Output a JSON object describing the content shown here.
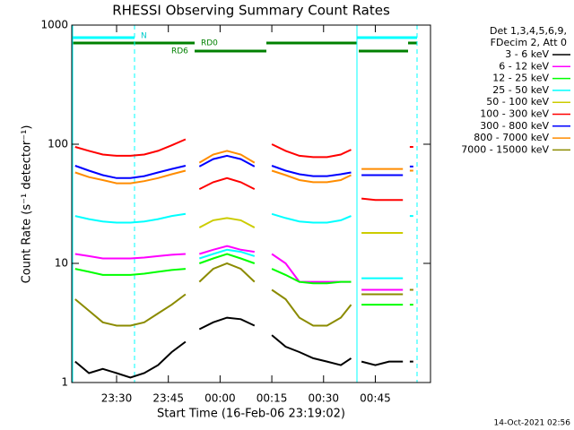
{
  "chart_data": {
    "type": "line",
    "title": "RHESSI Observing Summary Count Rates",
    "x_label": "Start Time (16-Feb-06 23:19:02)",
    "y_label": "Count Rate (s⁻¹ detector⁻¹)",
    "timestamp": "14-Oct-2021 02:56",
    "legend_header": [
      "Det 1,3,4,5,6,9,",
      "FDecim 2, Att 0"
    ],
    "annotations": [
      "N",
      "RD0",
      "RD6"
    ],
    "log_scale": true,
    "xlim": [
      "23:17",
      "01:01"
    ],
    "xticks": [
      "23:30",
      "23:45",
      "00:00",
      "00:15",
      "00:30",
      "00:45"
    ],
    "ylim": [
      1,
      1000
    ],
    "yticks": [
      1,
      10,
      100,
      1000
    ],
    "x": [
      "23:18",
      "23:22",
      "23:26",
      "23:30",
      "23:34",
      "23:38",
      "23:42",
      "23:46",
      "23:50",
      "23:52",
      "23:54",
      "23:58",
      "00:02",
      "00:06",
      "00:10",
      "00:13",
      "00:15",
      "00:19",
      "00:23",
      "00:27",
      "00:31",
      "00:35",
      "00:38",
      "00:39",
      "00:41",
      "00:45",
      "00:49",
      "00:53",
      "00:54",
      "00:55",
      "00:56"
    ],
    "series": [
      {
        "name": "3 - 6 keV",
        "color": "#000000",
        "values": [
          1.5,
          1.2,
          1.3,
          1.2,
          1.1,
          1.2,
          1.4,
          1.8,
          2.2,
          null,
          2.8,
          3.2,
          3.5,
          3.4,
          3,
          null,
          2.5,
          2,
          1.8,
          1.6,
          1.5,
          1.4,
          1.6,
          null,
          1.5,
          1.4,
          1.5,
          1.5,
          null,
          1.5,
          1.5
        ]
      },
      {
        "name": "6 - 12 keV",
        "color": "#ff00ff",
        "values": [
          12,
          11.5,
          11,
          11,
          11,
          11.2,
          11.5,
          11.8,
          12,
          null,
          12,
          13,
          14,
          13,
          12.5,
          null,
          12,
          10,
          7,
          7,
          7,
          7,
          7,
          null,
          6,
          6,
          6,
          6,
          null,
          6,
          6
        ]
      },
      {
        "name": "12 - 25 keV",
        "color": "#00ff00",
        "values": [
          9,
          8.5,
          8,
          8,
          8,
          8.2,
          8.5,
          8.8,
          9,
          null,
          10,
          11,
          12,
          11,
          10,
          null,
          9,
          8,
          7,
          6.8,
          6.8,
          7,
          7,
          null,
          4.5,
          4.5,
          4.5,
          4.5,
          null,
          4.5,
          4.5
        ]
      },
      {
        "name": "25 - 50 keV",
        "color": "#00ffff",
        "values": [
          25,
          23.5,
          22.5,
          22,
          22,
          22.5,
          23.5,
          25,
          26,
          null,
          11,
          12,
          13,
          12.5,
          11.5,
          null,
          26,
          24,
          22.5,
          22,
          22,
          23,
          25,
          null,
          7.5,
          7.5,
          7.5,
          7.5,
          null,
          25,
          25
        ]
      },
      {
        "name": "50 - 100 keV",
        "color": "#cccc00",
        "values": [
          null,
          null,
          null,
          null,
          null,
          null,
          null,
          null,
          null,
          null,
          20,
          23,
          24,
          23,
          20,
          null,
          null,
          null,
          null,
          null,
          null,
          null,
          null,
          null,
          18,
          18,
          18,
          18,
          null,
          null,
          null
        ]
      },
      {
        "name": "100 - 300 keV",
        "color": "#ff0000",
        "values": [
          95,
          88,
          82,
          80,
          80,
          82,
          88,
          98,
          110,
          null,
          42,
          48,
          52,
          48,
          42,
          null,
          100,
          88,
          80,
          78,
          78,
          82,
          90,
          null,
          35,
          34,
          34,
          34,
          null,
          95,
          95
        ]
      },
      {
        "name": "300 - 800 keV",
        "color": "#0000ff",
        "values": [
          66,
          60,
          55,
          52,
          52,
          54,
          58,
          62,
          66,
          null,
          65,
          75,
          80,
          75,
          65,
          null,
          66,
          60,
          56,
          54,
          54,
          56,
          58,
          null,
          55,
          55,
          55,
          55,
          null,
          65,
          65
        ]
      },
      {
        "name": "800 - 7000 keV",
        "color": "#ff8c00",
        "values": [
          58,
          53,
          50,
          47,
          47,
          49,
          52,
          56,
          60,
          null,
          70,
          82,
          88,
          82,
          70,
          null,
          60,
          55,
          50,
          48,
          48,
          50,
          55,
          null,
          62,
          62,
          62,
          62,
          null,
          60,
          60
        ]
      },
      {
        "name": "7000 - 15000 keV",
        "color": "#8b8b00",
        "values": [
          5,
          4,
          3.2,
          3,
          3,
          3.2,
          3.8,
          4.5,
          5.5,
          null,
          7,
          9,
          10,
          9,
          7,
          null,
          6,
          5,
          3.5,
          3,
          3,
          3.5,
          4.5,
          null,
          5.5,
          5.5,
          5.5,
          5.5,
          null,
          6,
          6
        ]
      }
    ]
  }
}
